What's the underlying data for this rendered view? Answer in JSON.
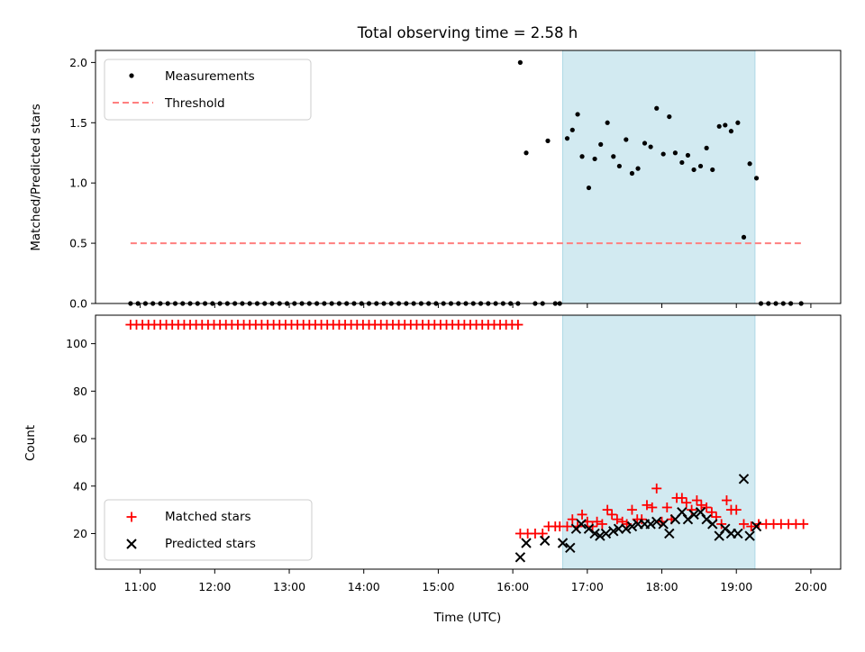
{
  "chart_data": [
    {
      "type": "scatter",
      "title": "Total observing time = 2.58 h",
      "xlabel": "",
      "ylabel": "Matched/Predicted stars",
      "ylim": [
        0,
        2.1
      ],
      "yticks": [
        "0.0",
        "0.5",
        "1.0",
        "1.5",
        "2.0"
      ],
      "highlight_span": {
        "from_hours": 16.67,
        "to_hours": 19.25,
        "color": "#add8e6"
      },
      "legend": {
        "placement": "upper left",
        "entries": [
          "Measurements",
          "Threshold"
        ]
      },
      "threshold": {
        "name": "Threshold",
        "value": 0.5,
        "x_from_hours": 10.87,
        "x_to_hours": 19.9,
        "color": "#ff7f7f"
      },
      "series": [
        {
          "name": "Measurements",
          "color": "#000000",
          "x_hours": [
            10.87,
            10.97,
            11.07,
            11.17,
            11.27,
            11.37,
            11.47,
            11.57,
            11.67,
            11.77,
            11.87,
            11.97,
            12.07,
            12.17,
            12.27,
            12.37,
            12.47,
            12.57,
            12.67,
            12.77,
            12.87,
            12.97,
            13.07,
            13.17,
            13.27,
            13.37,
            13.47,
            13.57,
            13.67,
            13.77,
            13.87,
            13.97,
            14.07,
            14.17,
            14.27,
            14.37,
            14.47,
            14.57,
            14.67,
            14.77,
            14.87,
            14.97,
            15.07,
            15.17,
            15.27,
            15.37,
            15.47,
            15.57,
            15.67,
            15.77,
            15.87,
            15.97,
            16.07,
            16.1,
            16.18,
            16.3,
            16.4,
            16.47,
            16.57,
            16.63,
            16.73,
            16.8,
            16.87,
            16.93,
            17.02,
            17.1,
            17.18,
            17.27,
            17.35,
            17.43,
            17.52,
            17.6,
            17.68,
            17.77,
            17.85,
            17.93,
            18.02,
            18.1,
            18.18,
            18.27,
            18.35,
            18.43,
            18.52,
            18.6,
            18.68,
            18.77,
            18.85,
            18.93,
            19.02,
            19.1,
            19.18,
            19.27,
            19.33,
            19.43,
            19.53,
            19.63,
            19.73,
            19.87
          ],
          "y": [
            0,
            0,
            0,
            0,
            0,
            0,
            0,
            0,
            0,
            0,
            0,
            0,
            0,
            0,
            0,
            0,
            0,
            0,
            0,
            0,
            0,
            0,
            0,
            0,
            0,
            0,
            0,
            0,
            0,
            0,
            0,
            0,
            0,
            0,
            0,
            0,
            0,
            0,
            0,
            0,
            0,
            0,
            0,
            0,
            0,
            0,
            0,
            0,
            0,
            0,
            0,
            0,
            0,
            2.0,
            1.25,
            0,
            0,
            1.35,
            0,
            0,
            1.37,
            1.44,
            1.57,
            1.22,
            0.96,
            1.2,
            1.32,
            1.5,
            1.22,
            1.14,
            1.36,
            1.08,
            1.12,
            1.33,
            1.3,
            1.62,
            1.24,
            1.55,
            1.25,
            1.17,
            1.23,
            1.11,
            1.14,
            1.29,
            1.11,
            1.47,
            1.48,
            1.43,
            1.5,
            0.55,
            1.16,
            1.04,
            0,
            0,
            0,
            0,
            0,
            0
          ]
        }
      ]
    },
    {
      "type": "scatter",
      "xlabel": "Time (UTC)",
      "ylabel": "Count",
      "ylim": [
        5,
        112
      ],
      "yticks": [
        "20",
        "40",
        "60",
        "80",
        "100"
      ],
      "xlim_hours": [
        10.4,
        20.4
      ],
      "xticks": [
        "11:00",
        "12:00",
        "13:00",
        "14:00",
        "15:00",
        "16:00",
        "17:00",
        "18:00",
        "19:00",
        "20:00"
      ],
      "highlight_span": {
        "from_hours": 16.67,
        "to_hours": 19.25,
        "color": "#add8e6"
      },
      "legend": {
        "placement": "lower left",
        "entries": [
          "Matched stars",
          "Predicted stars"
        ]
      },
      "series": [
        {
          "name": "Matched stars",
          "marker": "plus",
          "color": "#ff0000",
          "x_hours": [
            10.87,
            10.95,
            11.03,
            11.11,
            11.19,
            11.27,
            11.35,
            11.43,
            11.51,
            11.59,
            11.67,
            11.75,
            11.83,
            11.91,
            11.99,
            12.07,
            12.15,
            12.23,
            12.31,
            12.39,
            12.47,
            12.55,
            12.63,
            12.71,
            12.79,
            12.87,
            12.95,
            13.03,
            13.11,
            13.19,
            13.27,
            13.35,
            13.43,
            13.51,
            13.59,
            13.67,
            13.75,
            13.83,
            13.91,
            13.99,
            14.07,
            14.15,
            14.23,
            14.31,
            14.39,
            14.47,
            14.55,
            14.63,
            14.71,
            14.79,
            14.87,
            14.95,
            15.03,
            15.11,
            15.19,
            15.27,
            15.35,
            15.43,
            15.51,
            15.59,
            15.67,
            15.75,
            15.83,
            15.91,
            15.99,
            16.07,
            16.1,
            16.2,
            16.3,
            16.4,
            16.48,
            16.57,
            16.63,
            16.73,
            16.8,
            16.87,
            16.93,
            17.0,
            17.07,
            17.13,
            17.2,
            17.27,
            17.33,
            17.4,
            17.47,
            17.53,
            17.6,
            17.67,
            17.73,
            17.8,
            17.87,
            17.93,
            18.0,
            18.07,
            18.13,
            18.2,
            18.27,
            18.33,
            18.4,
            18.47,
            18.53,
            18.6,
            18.67,
            18.73,
            18.8,
            18.87,
            18.93,
            19.0,
            19.1,
            19.2,
            19.3,
            19.4,
            19.5,
            19.6,
            19.7,
            19.8,
            19.9
          ],
          "y": [
            108,
            108,
            108,
            108,
            108,
            108,
            108,
            108,
            108,
            108,
            108,
            108,
            108,
            108,
            108,
            108,
            108,
            108,
            108,
            108,
            108,
            108,
            108,
            108,
            108,
            108,
            108,
            108,
            108,
            108,
            108,
            108,
            108,
            108,
            108,
            108,
            108,
            108,
            108,
            108,
            108,
            108,
            108,
            108,
            108,
            108,
            108,
            108,
            108,
            108,
            108,
            108,
            108,
            108,
            108,
            108,
            108,
            108,
            108,
            108,
            108,
            108,
            108,
            108,
            108,
            108,
            20,
            20,
            20,
            20,
            23,
            23,
            23,
            23,
            26,
            23,
            28,
            25,
            23,
            25,
            24,
            30,
            28,
            26,
            25,
            24,
            30,
            26,
            26,
            32,
            31,
            39,
            25,
            31,
            26,
            35,
            35,
            33,
            30,
            34,
            32,
            31,
            29,
            27,
            24,
            34,
            30,
            30,
            24,
            23,
            24,
            24,
            24,
            24,
            24,
            24,
            24
          ],
          "y_note": "matched star counts"
        },
        {
          "name": "Predicted stars",
          "marker": "x",
          "color": "#000000",
          "x_hours": [
            16.1,
            16.18,
            16.43,
            16.67,
            16.77,
            16.85,
            16.92,
            17.02,
            17.1,
            17.17,
            17.25,
            17.35,
            17.42,
            17.52,
            17.6,
            17.68,
            17.77,
            17.85,
            17.93,
            18.02,
            18.1,
            18.18,
            18.27,
            18.35,
            18.43,
            18.52,
            18.6,
            18.68,
            18.77,
            18.85,
            18.93,
            19.02,
            19.1,
            19.18,
            19.27
          ],
          "y": [
            10,
            16,
            17,
            16,
            14,
            22,
            24,
            22,
            20,
            19,
            20,
            21,
            22,
            22,
            23,
            24,
            24,
            24,
            25,
            24,
            20,
            26,
            29,
            26,
            28,
            29,
            26,
            24,
            19,
            22,
            20,
            20,
            43,
            19,
            23
          ]
        }
      ]
    }
  ]
}
